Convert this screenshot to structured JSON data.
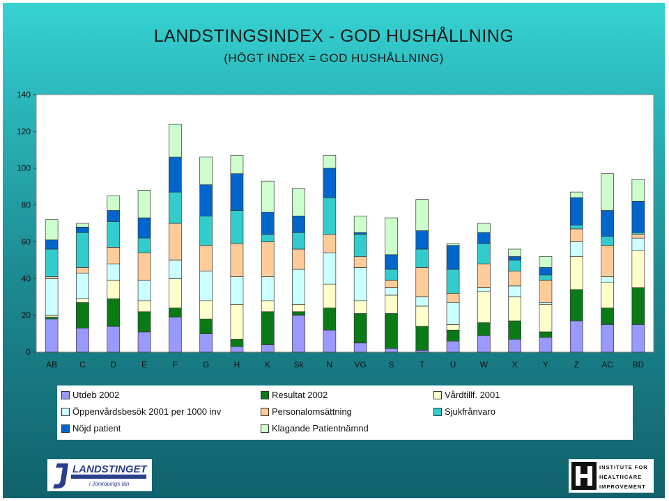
{
  "title": "LANDSTINGSINDEX - GOD HUSHÅLLNING",
  "subtitle": "(HÖGT INDEX = GOD HUSHÅLLNING)",
  "chart_data": {
    "type": "bar",
    "stacked": true,
    "ylim": [
      0,
      140
    ],
    "yticks": [
      0,
      20,
      40,
      60,
      80,
      100,
      120,
      140
    ],
    "categories": [
      "AB",
      "C",
      "D",
      "E",
      "F",
      "G",
      "H",
      "K",
      "Sk",
      "N",
      "VG",
      "S",
      "T",
      "U",
      "W",
      "X",
      "Y",
      "Z",
      "AC",
      "BD"
    ],
    "series": [
      {
        "name": "Utdeb 2002",
        "color": "#9999ff",
        "values": [
          18,
          13,
          14,
          11,
          19,
          10,
          3,
          4,
          20,
          12,
          5,
          2,
          1,
          6,
          9,
          7,
          8,
          17,
          15,
          15
        ]
      },
      {
        "name": "Resultat 2002",
        "color": "#0a7a16",
        "values": [
          1,
          14,
          15,
          11,
          5,
          8,
          4,
          18,
          2,
          12,
          16,
          19,
          13,
          6,
          7,
          10,
          3,
          17,
          9,
          20
        ]
      },
      {
        "name": "Vårdtillf. 2001",
        "color": "#ffffcc",
        "values": [
          1,
          2,
          10,
          6,
          16,
          10,
          19,
          6,
          4,
          13,
          7,
          10,
          11,
          3,
          17,
          13,
          15,
          18,
          14,
          20
        ]
      },
      {
        "name": "Öppenvårdsbesök 2001 per 1000 inv",
        "color": "#ccffff",
        "values": [
          20,
          14,
          9,
          11,
          10,
          16,
          15,
          13,
          19,
          17,
          18,
          4,
          5,
          12,
          2,
          6,
          1,
          8,
          3,
          7
        ]
      },
      {
        "name": "Personalomsättning",
        "color": "#ffcc99",
        "values": [
          1,
          3,
          9,
          15,
          20,
          14,
          18,
          19,
          11,
          10,
          6,
          4,
          16,
          5,
          13,
          8,
          12,
          7,
          17,
          2
        ]
      },
      {
        "name": "Sjukfrånvaro",
        "color": "#33cccc",
        "values": [
          15,
          19,
          14,
          8,
          17,
          16,
          18,
          4,
          9,
          20,
          12,
          6,
          10,
          13,
          11,
          6,
          3,
          2,
          5,
          1
        ]
      },
      {
        "name": "Nöjd patient",
        "color": "#0066cc",
        "values": [
          5,
          3,
          6,
          11,
          19,
          17,
          20,
          12,
          9,
          16,
          1,
          8,
          10,
          13,
          6,
          2,
          4,
          15,
          14,
          17
        ]
      },
      {
        "name": "Klagande Patientnämnd",
        "color": "#ccffcc",
        "values": [
          11,
          2,
          8,
          15,
          18,
          15,
          10,
          17,
          15,
          7,
          9,
          20,
          17,
          1,
          5,
          4,
          6,
          3,
          20,
          12
        ]
      }
    ]
  },
  "logos": {
    "left_text": "LANDSTINGET",
    "left_subtext": "i Jönköpings län",
    "right_lines": [
      "INSTITUTE FOR",
      "HEALTHCARE",
      "IMPROVEMENT"
    ]
  }
}
